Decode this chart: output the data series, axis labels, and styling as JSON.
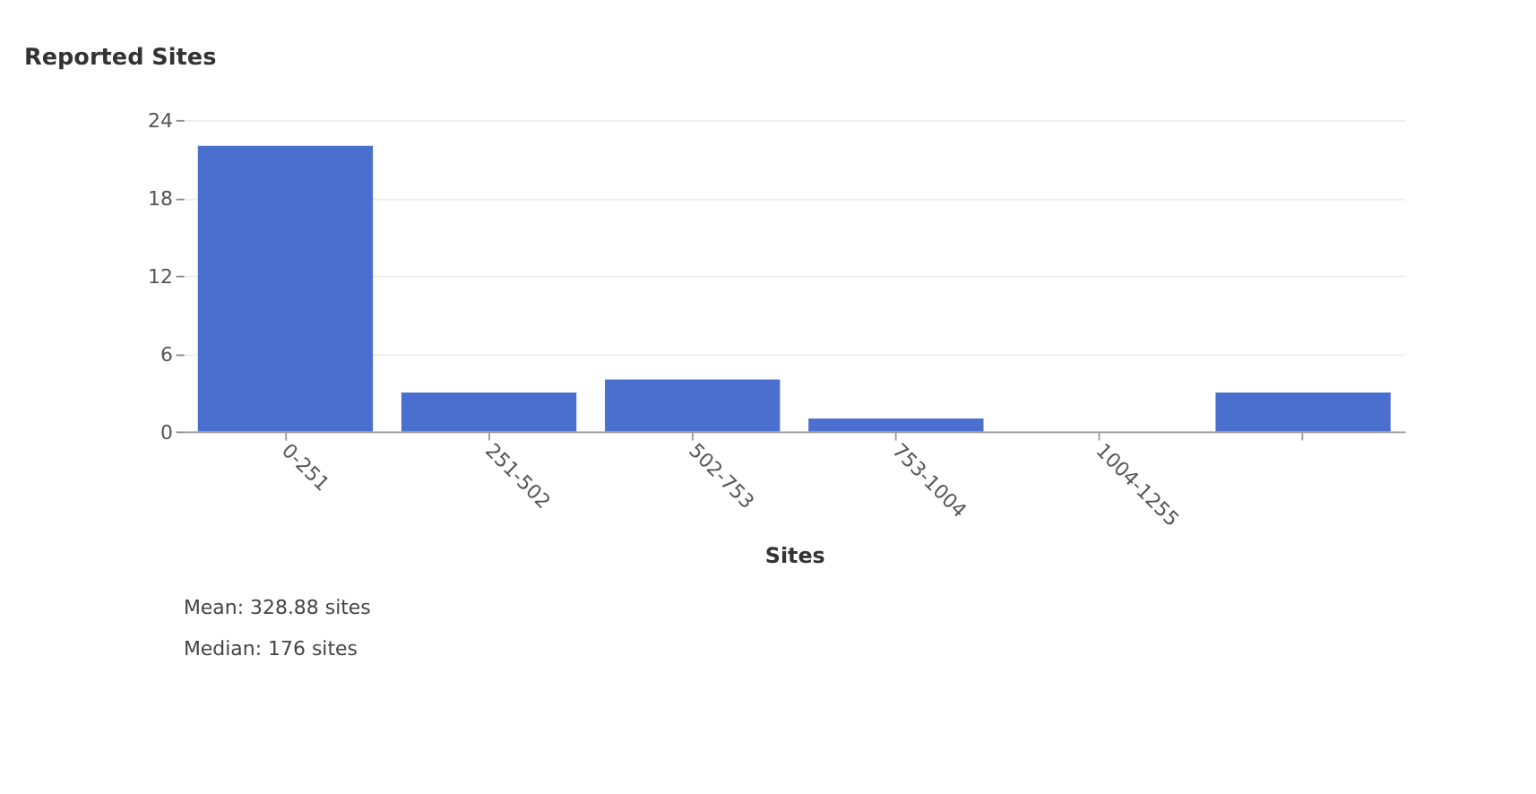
{
  "chart_data": {
    "type": "bar",
    "title": "Reported Sites",
    "xlabel": "Sites",
    "categories": [
      "0-251",
      "251-502",
      "502-753",
      "753-1004",
      "1004-1255",
      null
    ],
    "values": [
      22,
      3,
      4,
      1,
      0,
      3
    ],
    "color": "#4a6fce",
    "ylim": [
      0,
      24
    ],
    "yticks": [
      0,
      6,
      12,
      18,
      24
    ],
    "grid": "y",
    "annotations": [
      "Mean: 328.88 sites",
      "Median: 176 sites"
    ]
  }
}
